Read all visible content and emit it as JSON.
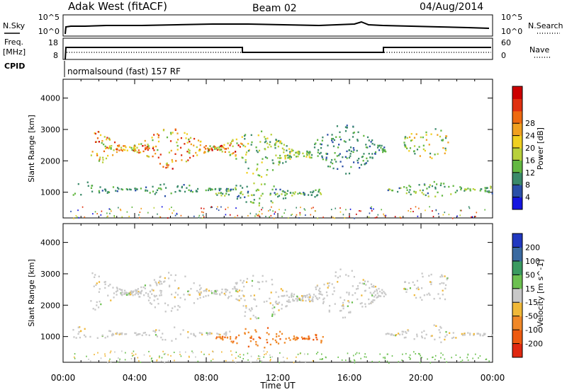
{
  "header": {
    "station": "Adak West (fitACF)",
    "beam": "Beam 02",
    "date": "04/Aug/2014"
  },
  "strip_labels": {
    "nsky": "N.Sky",
    "nsearch": "N.Search",
    "freq": "Freq.",
    "freq_unit": "[MHz]",
    "nave": "Nave",
    "cpid": "CPID",
    "cpid_value": "normalsound (fast) 157 RF"
  },
  "strip_ticks": {
    "noise_top": "10^5",
    "noise_bottom": "10^0",
    "freq_top": "18",
    "freq_bottom": "8",
    "nave_top": "60",
    "nave_bottom": "0"
  },
  "chart_data": [
    {
      "type": "heatmap",
      "title": "Power",
      "ylabel": "Slant Range [km]",
      "xlabel": "Time UT",
      "xlim": [
        "00:00",
        "24:00"
      ],
      "ylim": [
        180,
        4600
      ],
      "y_ticks": [
        "1000",
        "2000",
        "3000",
        "4000"
      ],
      "x_ticks": [
        "00:00",
        "04:00",
        "08:00",
        "12:00",
        "16:00",
        "20:00",
        "00:00"
      ],
      "colorbar": {
        "label": "Power [dB]",
        "ticks": [
          "4",
          "8",
          "12",
          "16",
          "20",
          "24",
          "28"
        ],
        "colors": [
          "#1515e0",
          "#2a4fa8",
          "#3a8a6a",
          "#63b842",
          "#b8d03a",
          "#f0d020",
          "#f0a020",
          "#ee6a10",
          "#e03010",
          "#cc0000"
        ]
      },
      "echo_bands": [
        {
          "t": [
            0.5,
            10
          ],
          "range_km": [
            880,
            1350
          ],
          "power_db": [
            4,
            10
          ]
        },
        {
          "t": [
            1.5,
            10
          ],
          "range_km": [
            1750,
            3100
          ],
          "power_db": [
            8,
            28
          ]
        },
        {
          "t": [
            8.5,
            14.5
          ],
          "range_km": [
            600,
            1350
          ],
          "power_db": [
            4,
            14
          ]
        },
        {
          "t": [
            10,
            14
          ],
          "range_km": [
            1500,
            3000
          ],
          "power_db": [
            6,
            16
          ]
        },
        {
          "t": [
            14,
            18
          ],
          "range_km": [
            1600,
            3200
          ],
          "power_db": [
            4,
            10
          ]
        },
        {
          "t": [
            18,
            24
          ],
          "range_km": [
            800,
            1400
          ],
          "power_db": [
            4,
            14
          ]
        },
        {
          "t": [
            19,
            21.5
          ],
          "range_km": [
            2100,
            3100
          ],
          "power_db": [
            6,
            20
          ]
        }
      ]
    },
    {
      "type": "heatmap",
      "title": "Velocity",
      "ylabel": "Slant Range [km]",
      "xlabel": "Time UT",
      "xlim": [
        "00:00",
        "24:00"
      ],
      "ylim": [
        180,
        4600
      ],
      "y_ticks": [
        "1000",
        "2000",
        "3000",
        "4000"
      ],
      "x_ticks": [
        "00:00",
        "04:00",
        "08:00",
        "12:00",
        "16:00",
        "20:00",
        "00:00"
      ],
      "colorbar": {
        "label": "Velocity [m s^-1]",
        "ticks": [
          "200",
          "100",
          "50",
          "15",
          "-15",
          "-50",
          "-100",
          "-200"
        ],
        "colors": [
          "#2038c0",
          "#3a6aa0",
          "#3a9a60",
          "#6cc050",
          "#c8c8c8",
          "#f0b838",
          "#f08828",
          "#ee5a10",
          "#e02810"
        ]
      },
      "velocity_bands": [
        {
          "t": [
            0.5,
            24
          ],
          "range_km": [
            1000,
            3300
          ],
          "velocity": "ground (~0 m/s, grey)"
        },
        {
          "t": [
            8.5,
            14.5
          ],
          "range_km": [
            600,
            1300
          ],
          "velocity": "-50 to -100 m/s (orange)"
        }
      ]
    }
  ]
}
